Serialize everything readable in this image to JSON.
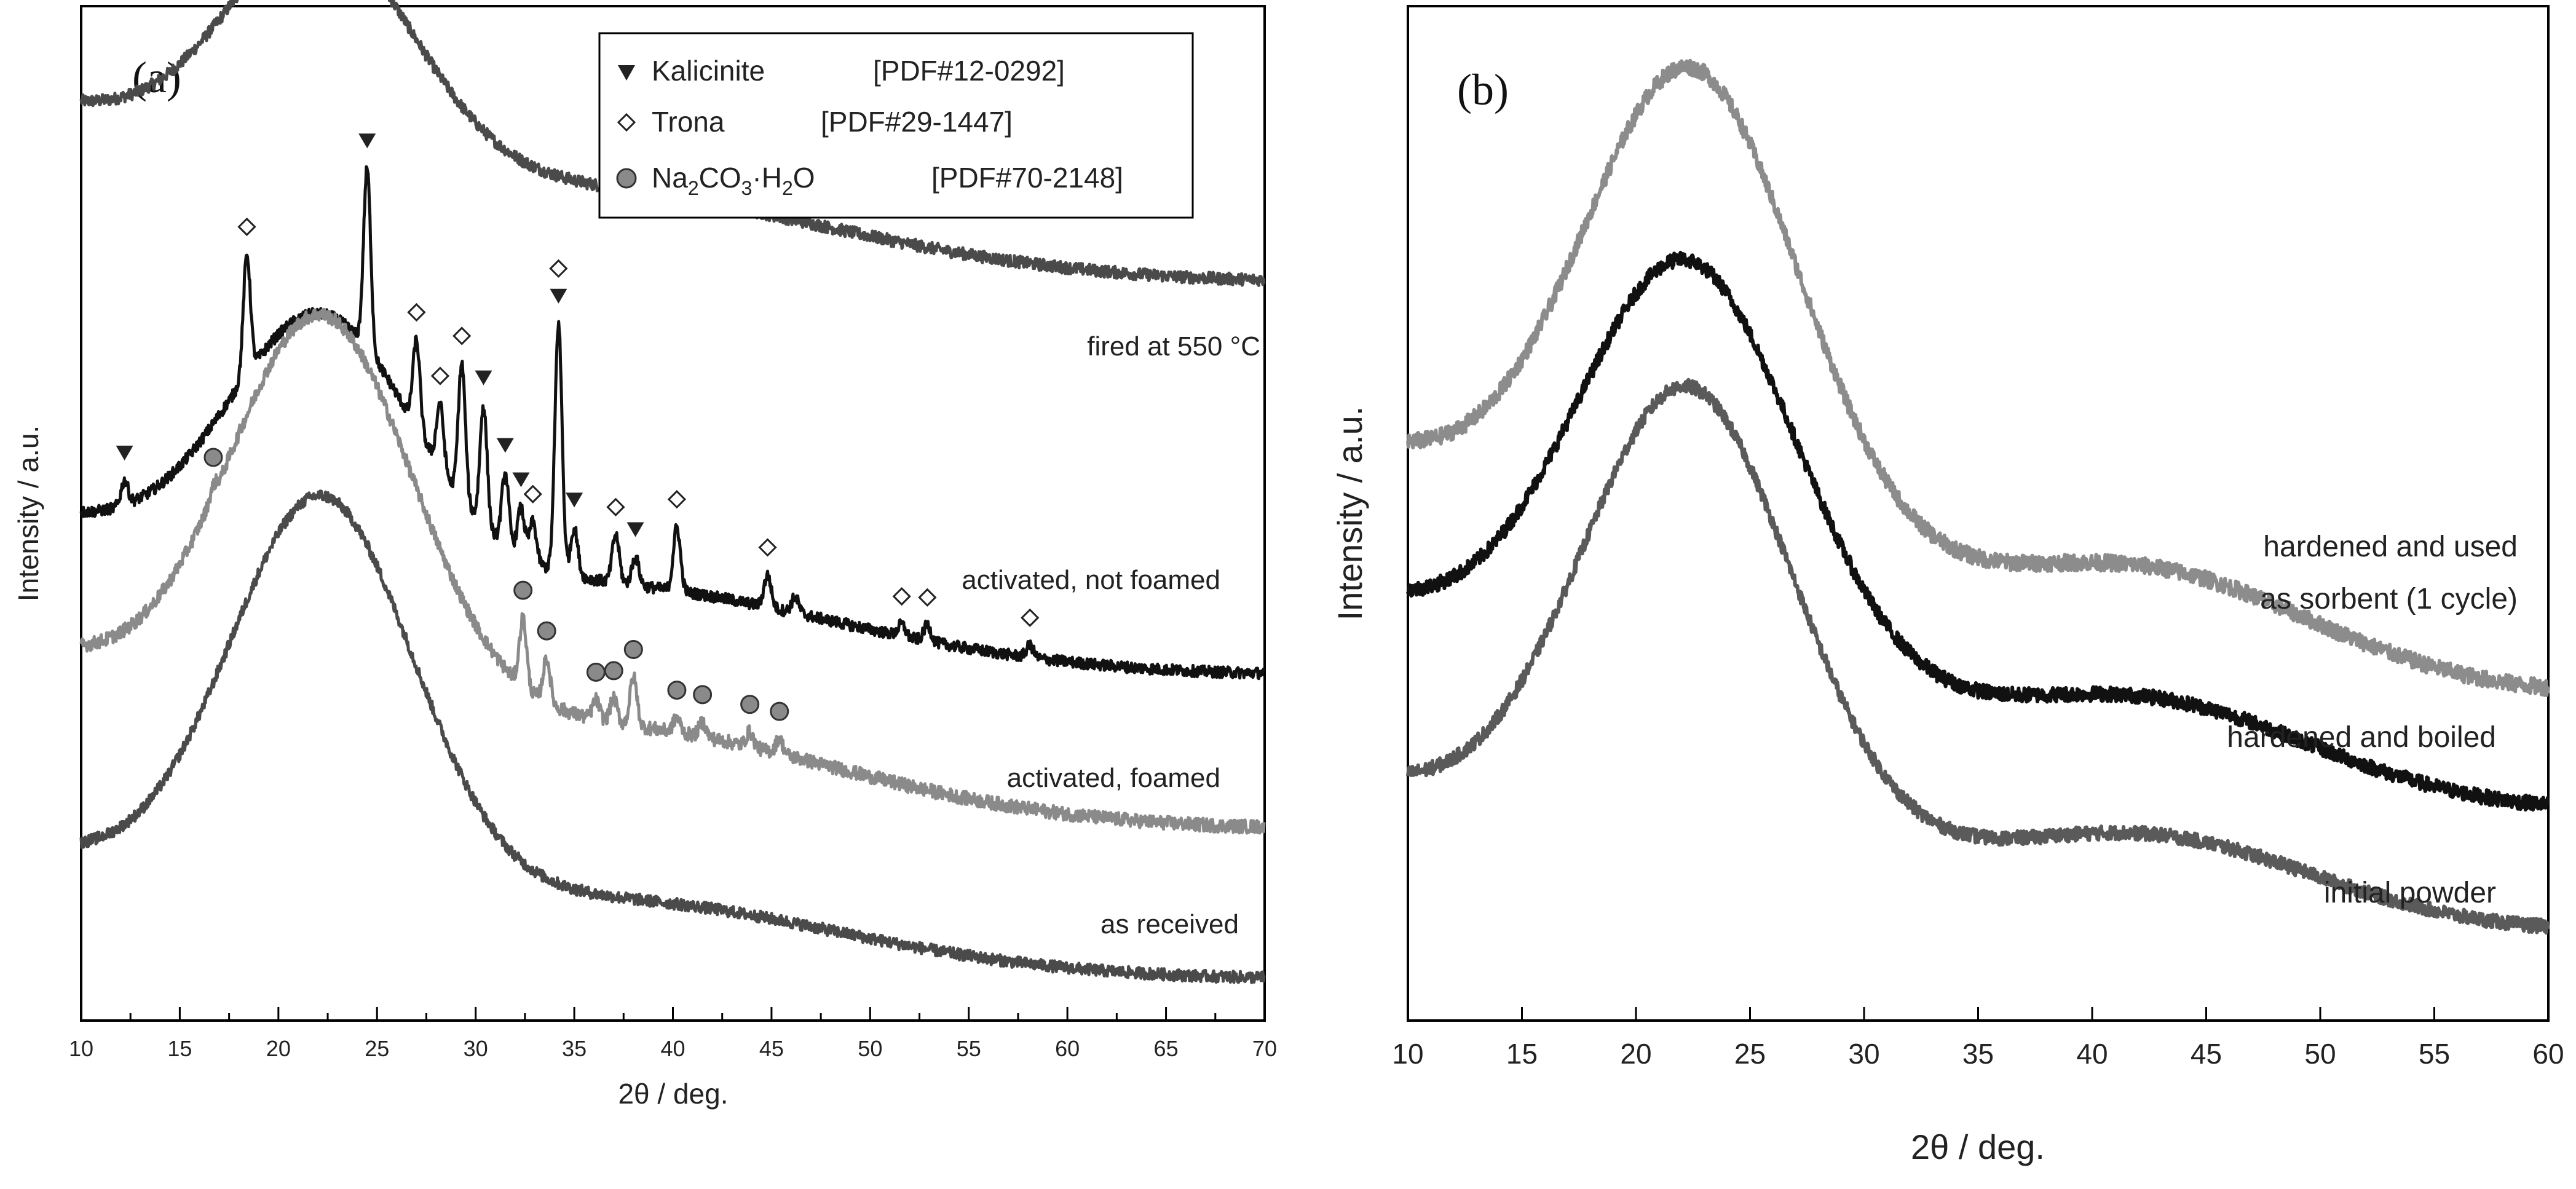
{
  "chart_data": [
    {
      "type": "line",
      "panel_label": "(a)",
      "xlabel": "2θ / deg.",
      "ylabel": "Intensity / a.u.",
      "xlim": [
        10,
        70
      ],
      "xticks": [
        "10",
        "15",
        "20",
        "25",
        "30",
        "35",
        "40",
        "45",
        "50",
        "55",
        "60",
        "65",
        "70"
      ],
      "legend": {
        "placement": "top-center",
        "entries": [
          {
            "marker": "triangle-down",
            "name": "Kalicinite",
            "ref": "[PDF#12-0292]"
          },
          {
            "marker": "diamond-open",
            "name": "Trona",
            "ref": "[PDF#29-1447]"
          },
          {
            "marker": "circle-gray",
            "name": "Na2CO3·H2O",
            "name_main": "Na",
            "sub1": "2",
            "name_mid": "CO",
            "sub2": "3",
            "sep": "·",
            "name_mid2": "H",
            "sub3": "2",
            "name_end": "O",
            "ref": "[PDF#70-2148]"
          }
        ]
      },
      "series": [
        {
          "name": "fired at 550 °C",
          "color": "#4a4a4a",
          "baseline_left": 0.7,
          "baseline_right": 0.3,
          "hump": {
            "center": 22.2,
            "height": 0.52,
            "width": 4.6
          },
          "broad": {
            "center": 40,
            "height": 0.06,
            "width": 9
          },
          "peaks": []
        },
        {
          "name": "activated, not foamed",
          "color": "#111111",
          "baseline_left": 0.385,
          "baseline_right": 0.0,
          "hump": {
            "center": 22.2,
            "height": 0.62,
            "width": 4.6
          },
          "broad": {
            "center": 40,
            "height": 0.08,
            "width": 9
          },
          "peaks": [
            [
              12.2,
              0.06
            ],
            [
              18.4,
              0.3
            ],
            [
              24.5,
              0.45
            ],
            [
              27.0,
              0.22
            ],
            [
              28.2,
              0.16
            ],
            [
              29.3,
              0.34
            ],
            [
              30.4,
              0.3
            ],
            [
              31.5,
              0.18
            ],
            [
              32.3,
              0.12
            ],
            [
              32.9,
              0.1
            ],
            [
              34.2,
              0.62
            ],
            [
              35.0,
              0.12
            ],
            [
              37.1,
              0.12
            ],
            [
              38.1,
              0.07
            ],
            [
              40.2,
              0.16
            ],
            [
              44.8,
              0.08
            ],
            [
              46.2,
              0.04
            ],
            [
              51.6,
              0.03
            ],
            [
              52.9,
              0.04
            ],
            [
              58.1,
              0.03
            ]
          ]
        },
        {
          "name": "activated, foamed",
          "color": "#8a8a8a",
          "baseline_left": 0.35,
          "baseline_right": 0.0,
          "hump": {
            "center": 22.2,
            "height": 0.8,
            "width": 4.6
          },
          "broad": {
            "center": 40,
            "height": 0.08,
            "width": 9
          },
          "peaks": [
            [
              16.7,
              0.02
            ],
            [
              32.4,
              0.14
            ],
            [
              33.6,
              0.09
            ],
            [
              36.1,
              0.04
            ],
            [
              37.0,
              0.05
            ],
            [
              38.0,
              0.1
            ],
            [
              40.2,
              0.03
            ],
            [
              41.5,
              0.03
            ],
            [
              43.9,
              0.03
            ],
            [
              45.4,
              0.03
            ]
          ]
        },
        {
          "name": "as received",
          "color": "#4a4a4a",
          "baseline_left": 0.3,
          "baseline_right": 0.0,
          "hump": {
            "center": 22.2,
            "height": 0.95,
            "width": 4.6
          },
          "broad": {
            "center": 40,
            "height": 0.08,
            "width": 9
          },
          "peaks": []
        }
      ],
      "markers": {
        "kalicinite": [
          [
            12.2,
            0.0
          ],
          [
            24.5,
            0.0
          ],
          [
            30.4,
            0.0
          ],
          [
            31.5,
            0.0
          ],
          [
            32.3,
            0.0
          ],
          [
            34.2,
            0.0
          ],
          [
            35.0,
            0.0
          ],
          [
            38.1,
            0.0
          ]
        ],
        "trona": [
          [
            18.4,
            0.0
          ],
          [
            27.0,
            0.0
          ],
          [
            28.2,
            0.0
          ],
          [
            29.3,
            0.0
          ],
          [
            32.9,
            0.0
          ],
          [
            34.2,
            0.0
          ],
          [
            37.1,
            0.0
          ],
          [
            40.2,
            0.0
          ],
          [
            44.8,
            0.0
          ],
          [
            51.6,
            0.0
          ],
          [
            52.9,
            0.0
          ],
          [
            58.1,
            0.0
          ]
        ],
        "na2co3h2o": [
          [
            16.7,
            0.0
          ],
          [
            32.4,
            0.0
          ],
          [
            33.6,
            0.0
          ],
          [
            36.1,
            0.0
          ],
          [
            37.0,
            0.0
          ],
          [
            38.0,
            0.0
          ],
          [
            40.2,
            0.0
          ],
          [
            41.5,
            0.0
          ],
          [
            43.9,
            0.0
          ],
          [
            45.4,
            0.0
          ]
        ]
      }
    },
    {
      "type": "line",
      "panel_label": "(b)",
      "xlabel": "2θ / deg.",
      "ylabel": "Intensity / a.u.",
      "xlim": [
        10,
        60
      ],
      "xticks": [
        "10",
        "15",
        "20",
        "25",
        "30",
        "35",
        "40",
        "45",
        "50",
        "55",
        "60"
      ],
      "series": [
        {
          "name": "hardened and used",
          "name2": "as sorbent (1 cycle)",
          "color": "#8c8c8c",
          "baseline_left": 0.4,
          "baseline_right": 0.05,
          "hump": {
            "center": 22.5,
            "height": 0.7,
            "width": 4.7
          },
          "broad": {
            "center": 43,
            "height": 0.12,
            "width": 7
          }
        },
        {
          "name": "hardened and boiled",
          "color": "#111111",
          "baseline_left": 0.38,
          "baseline_right": 0.05,
          "hump": {
            "center": 22.3,
            "height": 0.68,
            "width": 4.8
          },
          "broad": {
            "center": 43,
            "height": 0.12,
            "width": 7
          }
        },
        {
          "name": "initial powder",
          "color": "#5a5a5a",
          "baseline_left": 0.3,
          "baseline_right": 0.05,
          "hump": {
            "center": 22.3,
            "height": 0.78,
            "width": 4.6
          },
          "broad": {
            "center": 43,
            "height": 0.12,
            "width": 7
          }
        }
      ]
    }
  ]
}
